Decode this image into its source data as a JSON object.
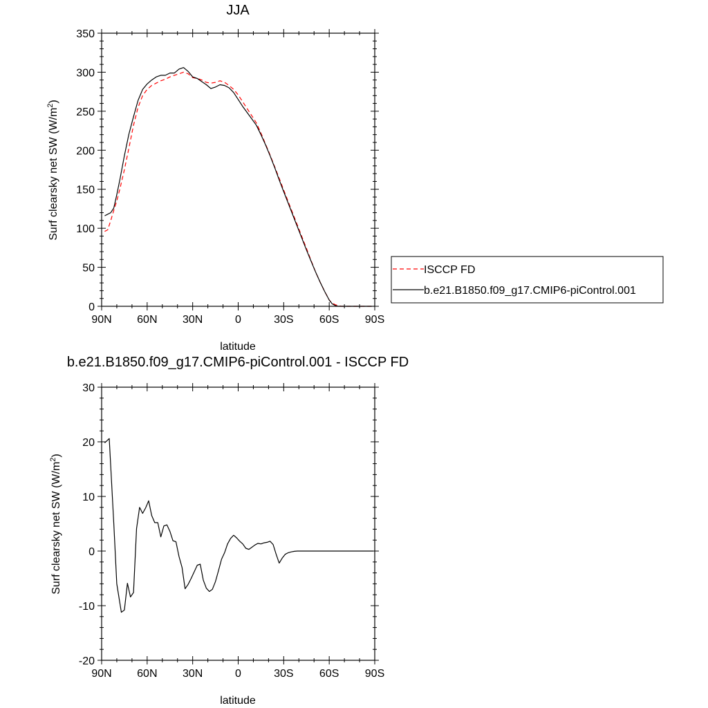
{
  "chart_data": [
    {
      "type": "line",
      "title": "JJA",
      "xlabel": "latitude",
      "ylabel": "Surf clearsky net SW (W/m",
      "ylabel_sup": "2",
      "ylabel_close": ")",
      "xlim": [
        90,
        -90
      ],
      "ylim": [
        0,
        350
      ],
      "xticks": [
        90,
        60,
        30,
        0,
        -30,
        -60,
        -90
      ],
      "xtick_labels": [
        "90N",
        "60N",
        "30N",
        "0",
        "30S",
        "60S",
        "90S"
      ],
      "yticks": [
        0,
        50,
        100,
        150,
        200,
        250,
        300,
        350
      ],
      "ytick_labels": [
        "0",
        "50",
        "100",
        "150",
        "200",
        "250",
        "300",
        "350"
      ],
      "legend_position": "right",
      "series": [
        {
          "name": "ISCCP FD",
          "color": "#ff0000",
          "dash": true,
          "x": [
            88,
            86,
            84,
            82,
            80,
            78,
            75,
            72,
            69,
            66,
            63,
            60,
            57,
            54,
            51,
            48,
            45,
            42,
            39,
            36,
            33,
            30,
            27,
            24,
            21,
            18,
            15,
            12,
            9,
            6,
            3,
            0,
            -3,
            -6,
            -9,
            -12,
            -15,
            -18,
            -21,
            -24,
            -27,
            -30,
            -33,
            -36,
            -39,
            -42,
            -45,
            -48,
            -51,
            -54,
            -57,
            -60,
            -62,
            -64,
            -66,
            -68,
            -70,
            -72,
            -74,
            -76,
            -78,
            -80,
            -82,
            -84,
            -86,
            -88
          ],
          "y": [
            96,
            98,
            110,
            123,
            135,
            150,
            175,
            203,
            232,
            255,
            270,
            278,
            283,
            286,
            289,
            291,
            294,
            296,
            298,
            300,
            298,
            293,
            292,
            290,
            287,
            286,
            287,
            289,
            287,
            283,
            278,
            271,
            262,
            253,
            244,
            235,
            222,
            208,
            194,
            179,
            164,
            149,
            134,
            119,
            104,
            89,
            74,
            59,
            44,
            31,
            19,
            8,
            4,
            2,
            1,
            0,
            0,
            0,
            0,
            0,
            0,
            0,
            0,
            0,
            0,
            0
          ]
        },
        {
          "name": "b.e21.B1850.f09_g17.CMIP6-piControl.001",
          "color": "#000000",
          "dash": false,
          "x": [
            88,
            86,
            84,
            82,
            80,
            78,
            75,
            72,
            69,
            66,
            63,
            60,
            57,
            54,
            51,
            48,
            45,
            42,
            39,
            36,
            33,
            30,
            27,
            24,
            21,
            18,
            15,
            12,
            9,
            6,
            3,
            0,
            -3,
            -6,
            -9,
            -12,
            -15,
            -18,
            -21,
            -24,
            -27,
            -30,
            -33,
            -36,
            -39,
            -42,
            -45,
            -48,
            -51,
            -54,
            -57,
            -60,
            -62,
            -64,
            -66,
            -68,
            -70,
            -72,
            -74,
            -76,
            -78,
            -80,
            -82,
            -84,
            -86,
            -88
          ],
          "y": [
            116,
            118,
            120,
            126,
            143,
            162,
            193,
            221,
            243,
            264,
            278,
            285,
            290,
            294,
            296,
            296,
            299,
            299,
            304,
            306,
            301,
            294,
            292,
            288,
            284,
            279,
            281,
            284,
            283,
            280,
            274,
            265,
            256,
            248,
            240,
            232,
            220,
            207,
            193,
            178,
            162,
            147,
            132,
            117,
            102,
            87,
            72,
            58,
            44,
            31,
            19,
            8,
            3,
            1,
            0,
            0,
            0,
            0,
            0,
            0,
            0,
            0,
            0,
            0,
            0,
            0
          ]
        }
      ]
    },
    {
      "type": "line",
      "title": "b.e21.B1850.f09_g17.CMIP6-piControl.001 - ISCCP FD",
      "xlabel": "latitude",
      "ylabel": "Surf clearsky net SW (W/m",
      "ylabel_sup": "2",
      "ylabel_close": ")",
      "xlim": [
        90,
        -90
      ],
      "ylim": [
        -20,
        30
      ],
      "xticks": [
        90,
        60,
        30,
        0,
        -30,
        -60,
        -90
      ],
      "xtick_labels": [
        "90N",
        "60N",
        "30N",
        "0",
        "30S",
        "60S",
        "90S"
      ],
      "yticks": [
        -20,
        -10,
        0,
        10,
        20,
        30
      ],
      "ytick_labels": [
        "-20",
        "-10",
        "0",
        "10",
        "20",
        "30"
      ],
      "series": [
        {
          "color": "#000000",
          "dash": false,
          "x": [
            88,
            85,
            82,
            80,
            77,
            75,
            73,
            71,
            69,
            67,
            65,
            63,
            61,
            59,
            57,
            55,
            53,
            51,
            49,
            47,
            45,
            43,
            41,
            39,
            37,
            35,
            33,
            31,
            29,
            27,
            25,
            23,
            21,
            19,
            17,
            15,
            13,
            11,
            9,
            7,
            5,
            3,
            1,
            -1,
            -3,
            -5,
            -7,
            -9,
            -11,
            -13,
            -15,
            -17,
            -19,
            -21,
            -23,
            -25,
            -27,
            -29,
            -31,
            -33,
            -35,
            -37,
            -39,
            -41,
            -43,
            -45,
            -47,
            -49,
            -51,
            -53,
            -55,
            -57,
            -59,
            -61,
            -63,
            -65,
            -67,
            -69,
            -71,
            -73,
            -75,
            -77,
            -79,
            -81,
            -83,
            -85,
            -87,
            -89
          ],
          "y": [
            19.8,
            20.6,
            5.0,
            -6.0,
            -11.2,
            -10.8,
            -5.9,
            -8.4,
            -7.6,
            4.1,
            8.0,
            6.9,
            7.9,
            9.2,
            6.5,
            5.2,
            5.2,
            2.6,
            4.6,
            4.8,
            3.6,
            1.9,
            1.7,
            -1.0,
            -3.0,
            -6.9,
            -6.1,
            -5.0,
            -3.8,
            -2.6,
            -2.4,
            -5.3,
            -6.8,
            -7.4,
            -7.0,
            -5.6,
            -3.6,
            -1.5,
            -0.3,
            1.3,
            2.3,
            2.9,
            2.4,
            1.8,
            1.3,
            0.5,
            0.3,
            0.7,
            1.1,
            1.4,
            1.3,
            1.5,
            1.6,
            1.8,
            1.2,
            -0.6,
            -2.2,
            -1.3,
            -0.6,
            -0.3,
            -0.15,
            -0.05,
            0,
            0,
            0,
            0,
            0,
            0,
            0,
            0,
            0,
            0,
            0,
            0,
            0,
            0,
            0,
            0,
            0,
            0,
            0,
            0,
            0,
            0,
            0,
            0,
            0,
            0
          ]
        }
      ]
    }
  ]
}
